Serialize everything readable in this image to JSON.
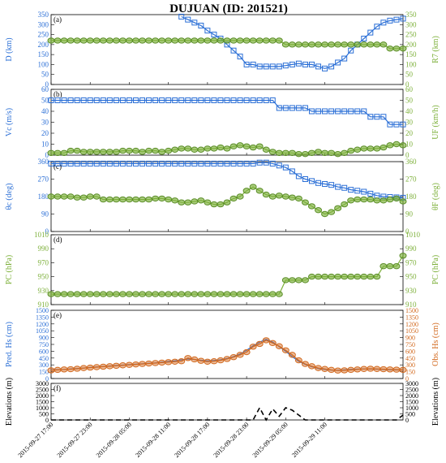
{
  "title": "DUJUAN (ID: 201521)",
  "colors": {
    "left": "#2b6fd6",
    "right": "#7db03a",
    "obs": "#d2691e",
    "black": "#000000"
  },
  "x_tick_labels": [
    "2015-09-27 17:00",
    "2015-09-27 23:00",
    "2015-09-28 05:00",
    "2015-09-28 11:00",
    "2015-09-28 17:00",
    "2015-09-28 23:00",
    "2015-09-29 05:00",
    "2015-09-29 11:00"
  ],
  "chart_data": [
    {
      "type": "line",
      "panel": "(a)",
      "x_range": [
        0,
        54
      ],
      "ylabel_left": "D (km)",
      "ylabel_right": "R7 (km)",
      "ylim": [
        0,
        350
      ],
      "yticks": [
        "0",
        "50",
        "100",
        "150",
        "200",
        "250",
        "300",
        "350"
      ],
      "series": [
        {
          "axis": "left",
          "marker": "square",
          "values": [
            null,
            null,
            null,
            null,
            null,
            null,
            null,
            null,
            null,
            null,
            null,
            null,
            null,
            null,
            null,
            null,
            null,
            null,
            null,
            null,
            340,
            325,
            310,
            295,
            270,
            250,
            230,
            200,
            170,
            140,
            100,
            100,
            90,
            90,
            90,
            90,
            95,
            100,
            105,
            100,
            100,
            90,
            80,
            90,
            110,
            130,
            170,
            200,
            230,
            260,
            290,
            310,
            320,
            325,
            330
          ]
        },
        {
          "axis": "right",
          "marker": "circle",
          "values": [
            220,
            220,
            220,
            220,
            220,
            220,
            220,
            220,
            220,
            220,
            220,
            220,
            220,
            220,
            220,
            220,
            220,
            220,
            220,
            220,
            220,
            220,
            220,
            220,
            220,
            220,
            220,
            220,
            220,
            220,
            220,
            220,
            220,
            220,
            220,
            220,
            200,
            200,
            200,
            200,
            200,
            200,
            200,
            200,
            200,
            200,
            200,
            200,
            200,
            200,
            200,
            200,
            180,
            180,
            180
          ]
        }
      ]
    },
    {
      "type": "line",
      "panel": "(b)",
      "x_range": [
        0,
        54
      ],
      "ylabel_left": "Vc (m/s)",
      "ylabel_right": "UF (km/h)",
      "ylim": [
        0,
        60
      ],
      "yticks": [
        "0",
        "10",
        "20",
        "30",
        "40",
        "50",
        "60"
      ],
      "series": [
        {
          "axis": "left",
          "marker": "square",
          "values": [
            50,
            50,
            50,
            50,
            50,
            50,
            50,
            50,
            50,
            50,
            50,
            50,
            50,
            50,
            50,
            50,
            50,
            50,
            50,
            50,
            50,
            50,
            50,
            50,
            50,
            50,
            50,
            50,
            50,
            50,
            50,
            50,
            50,
            50,
            50,
            43,
            43,
            43,
            43,
            43,
            40,
            40,
            40,
            40,
            40,
            40,
            40,
            40,
            40,
            35,
            35,
            35,
            28,
            28,
            28
          ]
        },
        {
          "axis": "right",
          "marker": "circle",
          "values": [
            2,
            2,
            2,
            4,
            4,
            3,
            3,
            3,
            3,
            3,
            3,
            4,
            4,
            4,
            3,
            4,
            4,
            3,
            4,
            5,
            6,
            6,
            5,
            5,
            6,
            6,
            7,
            6,
            8,
            9,
            8,
            7,
            8,
            5,
            3,
            2,
            2,
            2,
            1,
            1,
            2,
            3,
            2,
            2,
            1,
            2,
            4,
            5,
            6,
            6,
            6,
            7,
            9,
            10,
            9
          ]
        }
      ]
    },
    {
      "type": "line",
      "panel": "(c)",
      "x_range": [
        0,
        54
      ],
      "ylabel_left": "θc (deg)",
      "ylabel_right": "θF (deg)",
      "ylim": [
        0,
        360
      ],
      "yticks": [
        "0",
        "90",
        "180",
        "270",
        "360"
      ],
      "series": [
        {
          "axis": "left",
          "marker": "square",
          "values": [
            350,
            350,
            350,
            350,
            350,
            350,
            350,
            350,
            350,
            350,
            350,
            350,
            350,
            350,
            350,
            350,
            350,
            350,
            350,
            350,
            350,
            350,
            350,
            350,
            350,
            350,
            350,
            350,
            350,
            350,
            350,
            350,
            355,
            355,
            350,
            340,
            330,
            310,
            285,
            270,
            260,
            250,
            245,
            240,
            230,
            225,
            215,
            210,
            205,
            195,
            185,
            180,
            178,
            176,
            174
          ]
        },
        {
          "axis": "right",
          "marker": "circle",
          "values": [
            180,
            180,
            180,
            180,
            175,
            175,
            180,
            180,
            165,
            165,
            165,
            165,
            165,
            165,
            165,
            165,
            170,
            170,
            165,
            160,
            150,
            150,
            155,
            160,
            150,
            140,
            140,
            150,
            170,
            180,
            210,
            230,
            210,
            190,
            180,
            185,
            180,
            175,
            170,
            150,
            130,
            110,
            90,
            100,
            120,
            140,
            160,
            165,
            165,
            165,
            160,
            160,
            165,
            170,
            155
          ]
        }
      ]
    },
    {
      "type": "line",
      "panel": "(d)",
      "x_range": [
        0,
        54
      ],
      "ylabel_left": "PC (hPa)",
      "ylabel_right": "PC (hPa)",
      "ylim": [
        910,
        1010
      ],
      "yticks": [
        "910",
        "930",
        "950",
        "970",
        "990",
        "1010"
      ],
      "series": [
        {
          "axis": "right",
          "marker": "circle",
          "values": [
            925,
            925,
            925,
            925,
            925,
            925,
            925,
            925,
            925,
            925,
            925,
            925,
            925,
            925,
            925,
            925,
            925,
            925,
            925,
            925,
            925,
            925,
            925,
            925,
            925,
            925,
            925,
            925,
            925,
            925,
            925,
            925,
            925,
            925,
            925,
            925,
            945,
            945,
            945,
            945,
            950,
            950,
            950,
            950,
            950,
            950,
            950,
            950,
            950,
            950,
            950,
            965,
            965,
            965,
            980
          ]
        }
      ]
    },
    {
      "type": "line",
      "panel": "(e)",
      "x_range": [
        0,
        54
      ],
      "ylabel_left": "Pred. Hs (cm)",
      "ylabel_right": "Obs. Hs (cm)",
      "ylim": [
        0,
        1500
      ],
      "yticks": [
        "0",
        "150",
        "300",
        "450",
        "600",
        "750",
        "900",
        "1050",
        "1200",
        "1350",
        "1500"
      ],
      "series": [
        {
          "axis": "left",
          "marker": "none",
          "values": [
            190,
            195,
            200,
            210,
            220,
            230,
            245,
            255,
            265,
            275,
            285,
            295,
            305,
            315,
            325,
            335,
            345,
            360,
            375,
            390,
            410,
            430,
            420,
            400,
            390,
            395,
            410,
            440,
            480,
            540,
            620,
            720,
            800,
            860,
            800,
            700,
            600,
            480,
            380,
            310,
            260,
            220,
            200,
            185,
            180,
            190,
            200,
            205,
            210,
            210,
            205,
            200,
            195,
            190,
            185
          ]
        },
        {
          "axis": "right",
          "marker": "circle",
          "values": [
            180,
            190,
            200,
            205,
            215,
            230,
            240,
            250,
            260,
            270,
            280,
            290,
            300,
            310,
            320,
            330,
            340,
            350,
            360,
            370,
            380,
            450,
            420,
            390,
            370,
            380,
            400,
            430,
            470,
            520,
            580,
            700,
            760,
            840,
            780,
            710,
            620,
            520,
            400,
            320,
            270,
            230,
            210,
            190,
            175,
            180,
            190,
            200,
            210,
            215,
            210,
            205,
            200,
            195,
            190
          ]
        }
      ]
    },
    {
      "type": "line",
      "panel": "(f)",
      "x_range": [
        0,
        54
      ],
      "ylabel_left": "Elevations (m)",
      "ylabel_right": "Elevations (m)",
      "ylim": [
        0,
        3000
      ],
      "yticks": [
        "0",
        "500",
        "1000",
        "1500",
        "2000",
        "2500",
        "3000"
      ],
      "series": [
        {
          "axis": "left",
          "marker": "none",
          "dashed": true,
          "values": [
            0,
            0,
            0,
            0,
            0,
            0,
            0,
            0,
            0,
            0,
            0,
            0,
            0,
            0,
            0,
            0,
            0,
            0,
            0,
            0,
            0,
            0,
            0,
            0,
            0,
            0,
            0,
            0,
            0,
            0,
            0,
            0,
            1000,
            0,
            900,
            300,
            1000,
            800,
            400,
            0,
            0,
            0,
            0,
            0,
            0,
            0,
            0,
            0,
            0,
            0,
            0,
            0,
            0,
            0,
            400
          ]
        }
      ]
    }
  ]
}
